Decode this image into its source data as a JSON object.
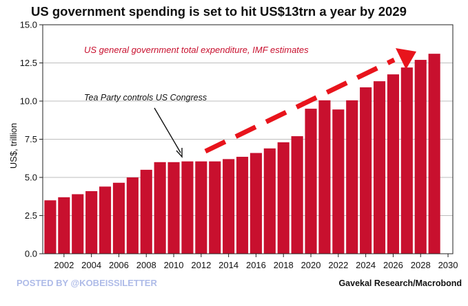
{
  "chart_data": {
    "type": "bar",
    "title": "US government spending is set to hit US$13trn a year by 2029",
    "subtitle": "US general government total expenditure, IMF estimates",
    "annotation": "Tea Party controls US Congress",
    "ylabel": "US$, trillion",
    "xlabel": "",
    "ylim": [
      0,
      15
    ],
    "yticks": [
      "0.0",
      "2.5",
      "5.0",
      "7.5",
      "10.0",
      "12.5",
      "15.0"
    ],
    "xticks": [
      "2002",
      "2004",
      "2006",
      "2008",
      "2010",
      "2012",
      "2014",
      "2016",
      "2018",
      "2020",
      "2022",
      "2024",
      "2026",
      "2028",
      "2030"
    ],
    "categories": [
      2001,
      2002,
      2003,
      2004,
      2005,
      2006,
      2007,
      2008,
      2009,
      2010,
      2011,
      2012,
      2013,
      2014,
      2015,
      2016,
      2017,
      2018,
      2019,
      2020,
      2021,
      2022,
      2023,
      2024,
      2025,
      2026,
      2027,
      2028,
      2029
    ],
    "values": [
      3.5,
      3.7,
      3.9,
      4.1,
      4.4,
      4.65,
      5.0,
      5.5,
      6.0,
      6.0,
      6.05,
      6.05,
      6.05,
      6.2,
      6.35,
      6.6,
      6.9,
      7.3,
      7.7,
      9.5,
      10.05,
      9.45,
      10.05,
      10.9,
      11.3,
      11.75,
      12.2,
      12.7,
      13.1
    ],
    "grid": true,
    "bar_color": "#c8102e",
    "trend_color": "#e8141c",
    "subtitle_color": "#c8102e"
  },
  "footer": {
    "credit": "POSTED BY @KOBEISSILETTER",
    "credit_color": "#aebbe8",
    "source": "Gavekal Research/Macrobond"
  }
}
